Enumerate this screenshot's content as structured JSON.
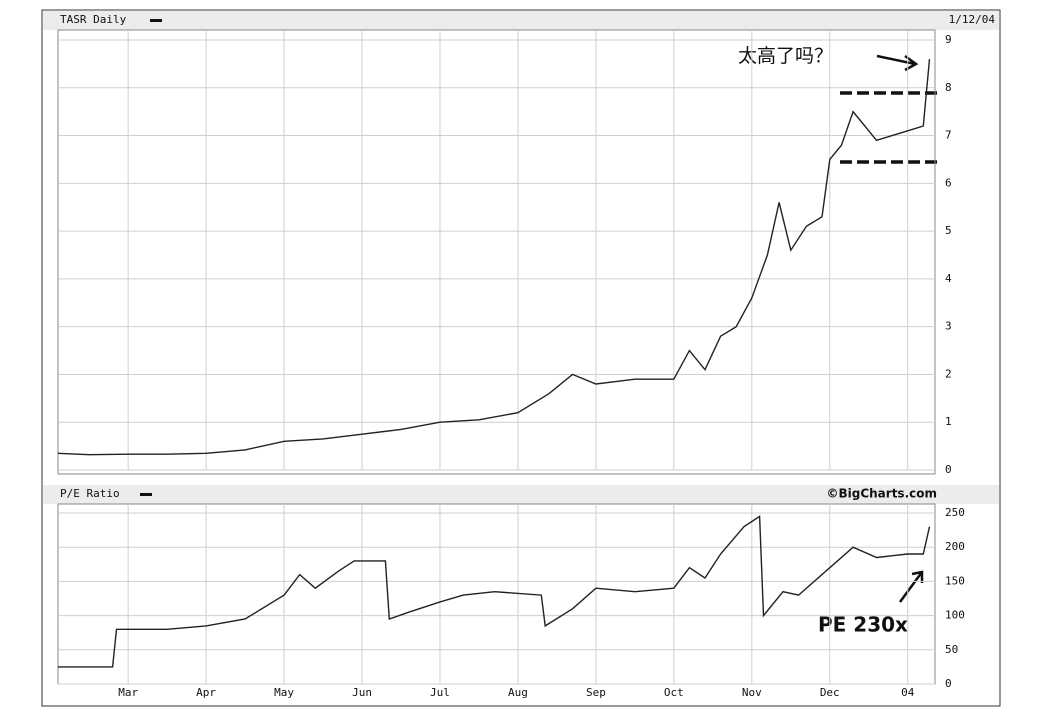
{
  "chart_data": [
    {
      "type": "line",
      "title": "TASR Daily",
      "subtitle": "1/12/04",
      "annotation": "太高了吗？",
      "series": [
        {
          "name": "TASR",
          "color": "#222222",
          "x": [
            0.1,
            0.5,
            1,
            1.5,
            2,
            2.5,
            3,
            3.5,
            4,
            4.5,
            5,
            5.5,
            6,
            6.4,
            6.7,
            7,
            7.5,
            8,
            8.2,
            8.4,
            8.6,
            8.8,
            9.0,
            9.2,
            9.35,
            9.5,
            9.7,
            9.9,
            10.0,
            10.15,
            10.3,
            10.45,
            10.6,
            10.8,
            11.0,
            11.2,
            11.28
          ],
          "values": [
            0.35,
            0.32,
            0.33,
            0.33,
            0.35,
            0.42,
            0.6,
            0.65,
            0.75,
            0.85,
            1.0,
            1.05,
            1.2,
            1.6,
            2.0,
            1.8,
            1.9,
            1.9,
            2.5,
            2.1,
            2.8,
            3.0,
            3.6,
            4.5,
            5.6,
            4.6,
            5.1,
            5.3,
            6.5,
            6.8,
            7.5,
            7.2,
            6.9,
            7.0,
            7.1,
            7.2,
            8.6
          ]
        }
      ],
      "xlim": [
        0.1,
        11.35
      ],
      "ylim": [
        0,
        9
      ],
      "yticks": [
        0,
        1,
        2,
        3,
        4,
        5,
        6,
        7,
        8,
        9
      ],
      "grid": true
    },
    {
      "type": "line",
      "title": "P/E Ratio",
      "subtitle": "©BigCharts.com",
      "annotation": "PE 230x",
      "series": [
        {
          "name": "P/E",
          "color": "#222222",
          "x": [
            0.1,
            0.8,
            0.85,
            1.5,
            2,
            2.5,
            3,
            3.2,
            3.4,
            3.7,
            3.9,
            4.3,
            4.35,
            4.6,
            5,
            5.3,
            5.7,
            6.3,
            6.35,
            6.7,
            7,
            7.5,
            8,
            8.2,
            8.4,
            8.6,
            8.9,
            9.1,
            9.15,
            9.4,
            9.6,
            10,
            10.3,
            10.6,
            11,
            11.2,
            11.28
          ],
          "values": [
            25,
            25,
            80,
            80,
            85,
            95,
            130,
            160,
            140,
            165,
            180,
            180,
            95,
            105,
            120,
            130,
            135,
            130,
            85,
            110,
            140,
            135,
            140,
            170,
            155,
            190,
            230,
            245,
            100,
            135,
            130,
            170,
            200,
            185,
            190,
            190,
            230
          ]
        }
      ],
      "xlim": [
        0.1,
        11.35
      ],
      "ylim": [
        0,
        250
      ],
      "yticks": [
        0,
        50,
        100,
        150,
        200,
        250
      ],
      "xticks": [
        {
          "value": 1,
          "label": "Mar"
        },
        {
          "value": 2,
          "label": "Apr"
        },
        {
          "value": 3,
          "label": "May"
        },
        {
          "value": 4,
          "label": "Jun"
        },
        {
          "value": 5,
          "label": "Jul"
        },
        {
          "value": 6,
          "label": "Aug"
        },
        {
          "value": 7,
          "label": "Sep"
        },
        {
          "value": 8,
          "label": "Oct"
        },
        {
          "value": 9,
          "label": "Nov"
        },
        {
          "value": 10,
          "label": "Dec"
        },
        {
          "value": 11,
          "label": "04"
        }
      ],
      "grid": true
    }
  ]
}
